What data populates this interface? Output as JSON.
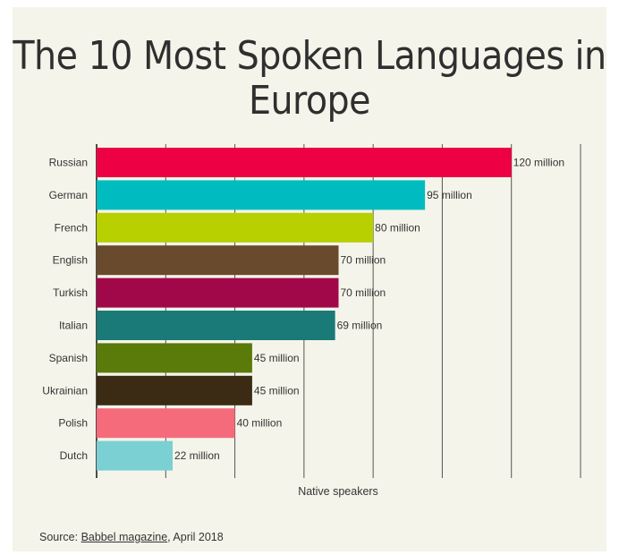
{
  "title": "The 10 Most Spoken Languages in Europe",
  "source": {
    "prefix": "Source: ",
    "link_text": "Babbel magazine",
    "suffix": ", April 2018"
  },
  "chart_data": {
    "type": "bar",
    "orientation": "horizontal",
    "title": "The 10 Most Spoken Languages in Europe",
    "xlabel": "Native speakers",
    "ylabel": "",
    "xlim": [
      0,
      140
    ],
    "grid": true,
    "categories": [
      "Russian",
      "German",
      "French",
      "English",
      "Turkish",
      "Italian",
      "Spanish",
      "Ukrainian",
      "Polish",
      "Dutch"
    ],
    "values": [
      120,
      95,
      80,
      70,
      70,
      69,
      45,
      45,
      40,
      22
    ],
    "value_labels": [
      "120 million",
      "95 million",
      "80 million",
      "70 million",
      "70 million",
      "69 million",
      "45 million",
      "45 million",
      "40 million",
      "22 million"
    ],
    "colors": [
      "#ee0044",
      "#00bcc0",
      "#b8cf00",
      "#6a4a2c",
      "#a1084a",
      "#1a7a78",
      "#5a7a0a",
      "#3b2b15",
      "#f56b7c",
      "#7ad0d2"
    ]
  }
}
